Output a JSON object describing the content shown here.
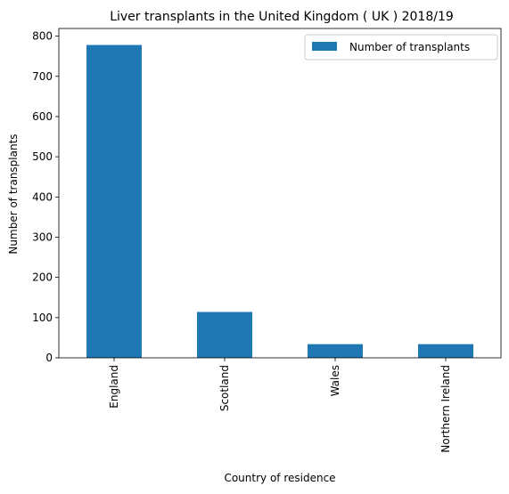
{
  "chart_data": {
    "type": "bar",
    "title": "Liver transplants in the United Kingdom ( UK ) 2018/19",
    "xlabel": "Country of residence",
    "ylabel": "Number of transplants",
    "categories": [
      "England",
      "Scotland",
      "Wales",
      "Northern Ireland"
    ],
    "series": [
      {
        "name": "Number of transplants",
        "values": [
          778,
          114,
          34,
          34
        ]
      }
    ],
    "ylim": [
      0,
      819
    ],
    "yticks": [
      0,
      100,
      200,
      300,
      400,
      500,
      600,
      700,
      800
    ],
    "grid": false,
    "legend_position": "top-right",
    "bar_color": "#1f77b4"
  }
}
